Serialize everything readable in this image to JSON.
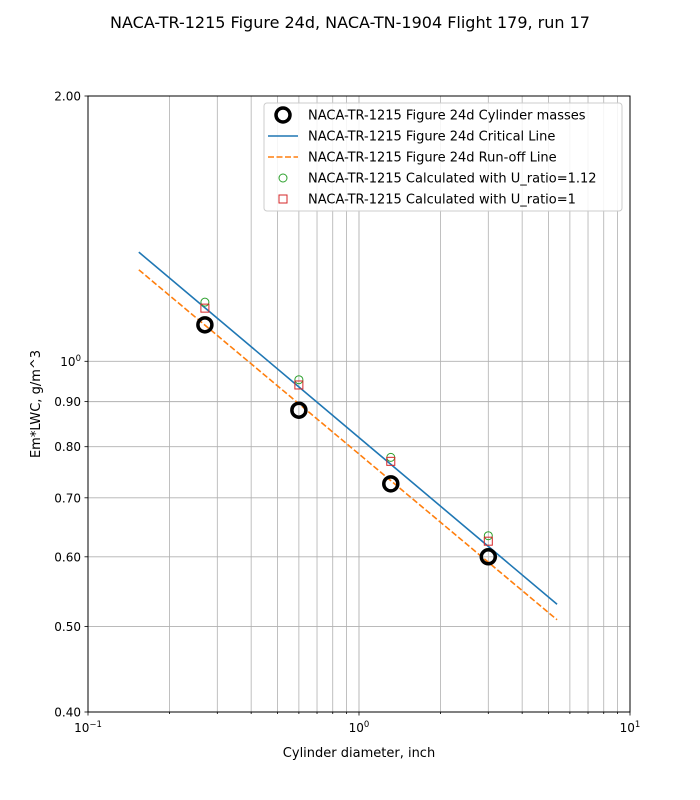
{
  "chart_data": {
    "type": "scatter",
    "title": "NACA-TR-1215 Figure 24d, NACA-TN-1904 Flight 179, run 17",
    "xlabel": "Cylinder diameter, inch",
    "ylabel": "Em*LWC, g/m^3",
    "xscale": "log",
    "yscale": "log",
    "xlim": [
      0.1,
      10
    ],
    "ylim": [
      0.4,
      2.0
    ],
    "grid": true,
    "grid_which": "both",
    "legend_placement": "upper right",
    "x_ticks": [
      {
        "value": 0.1,
        "base": "10",
        "exp": "−1"
      },
      {
        "value": 1,
        "base": "10",
        "exp": "0"
      },
      {
        "value": 10,
        "base": "10",
        "exp": "1"
      }
    ],
    "y_ticks": [
      {
        "value": 2.0,
        "label": "2.00"
      },
      {
        "value": 1.0,
        "label": "10",
        "exp": "0"
      },
      {
        "value": 0.9,
        "label": "0.90"
      },
      {
        "value": 0.8,
        "label": "0.80"
      },
      {
        "value": 0.7,
        "label": "0.70"
      },
      {
        "value": 0.6,
        "label": "0.60"
      },
      {
        "value": 0.5,
        "label": "0.50"
      },
      {
        "value": 0.4,
        "label": "0.40"
      }
    ],
    "series": [
      {
        "name": "NACA-TR-1215 Figure 24d Cylinder masses",
        "kind": "marker",
        "marker": "circle-large",
        "color": "#000000",
        "x": [
          0.27,
          0.6,
          1.31,
          3.0
        ],
        "y": [
          1.1,
          0.88,
          0.726,
          0.6
        ]
      },
      {
        "name": "NACA-TR-1215 Figure 24d Critical Line",
        "kind": "line",
        "style": "solid",
        "color": "#1f77b4",
        "x": [
          0.154,
          5.38
        ],
        "y": [
          1.33,
          0.53
        ]
      },
      {
        "name": "NACA-TR-1215 Figure 24d Run-off Line",
        "kind": "line",
        "style": "dashed",
        "color": "#ff7f0e",
        "x": [
          0.154,
          5.38
        ],
        "y": [
          1.27,
          0.509
        ]
      },
      {
        "name": "NACA-TR-1215 Calculated with U_ratio=1.12",
        "kind": "marker",
        "marker": "circle",
        "color": "#2ca02c",
        "x": [
          0.27,
          0.6,
          1.31,
          3.0
        ],
        "y": [
          1.167,
          0.953,
          0.778,
          0.634
        ]
      },
      {
        "name": "NACA-TR-1215 Calculated with U_ratio=1",
        "kind": "marker",
        "marker": "square",
        "color": "#d62728",
        "x": [
          0.27,
          0.6,
          1.31,
          3.0
        ],
        "y": [
          1.149,
          0.94,
          0.77,
          0.625
        ]
      }
    ]
  }
}
